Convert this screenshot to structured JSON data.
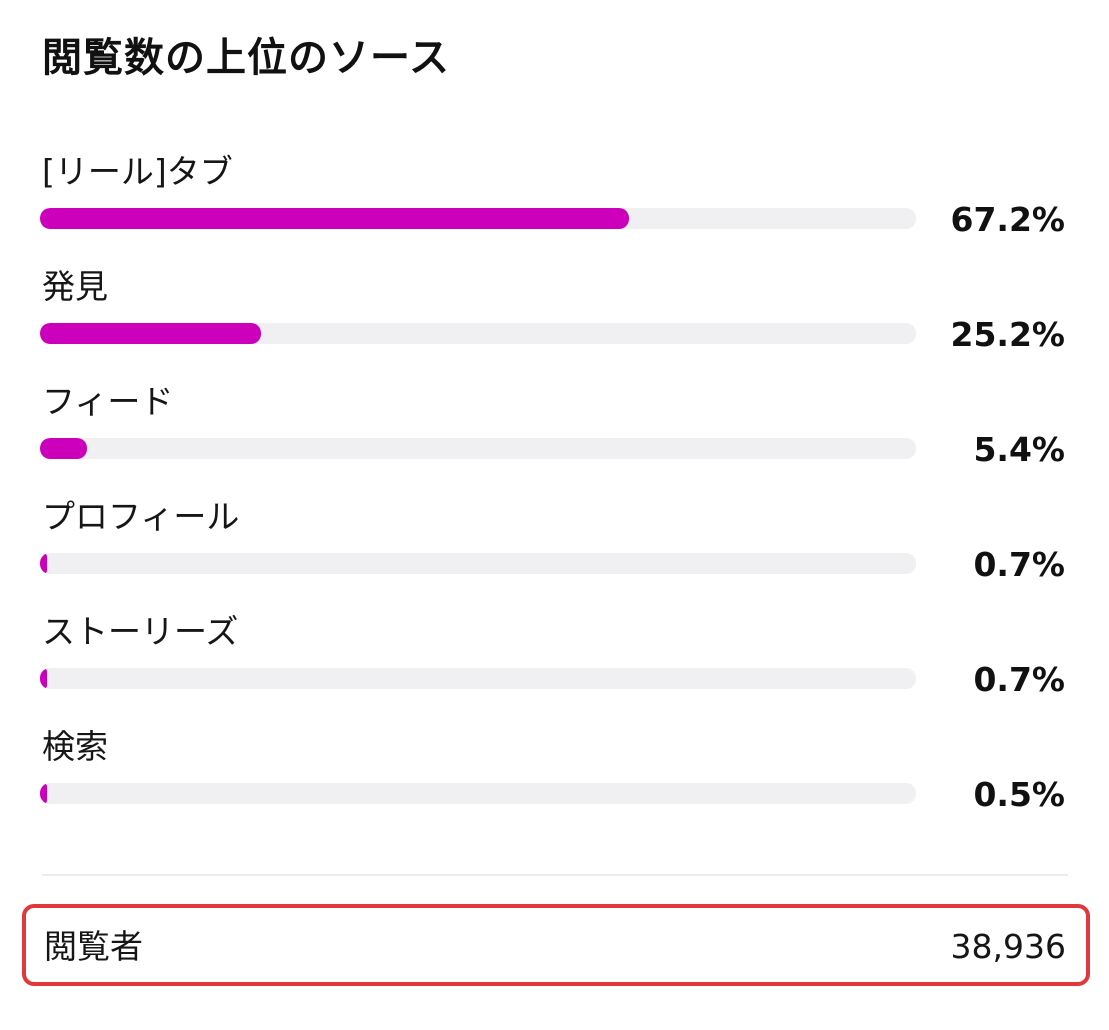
{
  "title": "閲覧数の上位のソース",
  "accent_color": "#cc00bb",
  "track_color": "#f0f0f3",
  "sources": [
    {
      "label": "[リール]タブ",
      "percent_text": "67.2%",
      "percent": 67.2
    },
    {
      "label": "発見",
      "percent_text": "25.2%",
      "percent": 25.2
    },
    {
      "label": "フィード",
      "percent_text": "5.4%",
      "percent": 5.4
    },
    {
      "label": "プロフィール",
      "percent_text": "0.7%",
      "percent": 0.7
    },
    {
      "label": "ストーリーズ",
      "percent_text": "0.7%",
      "percent": 0.7
    },
    {
      "label": "検索",
      "percent_text": "0.5%",
      "percent": 0.5
    }
  ],
  "summary": {
    "label": "閲覧者",
    "value": "38,936",
    "highlight_color": "#e0383b"
  }
}
